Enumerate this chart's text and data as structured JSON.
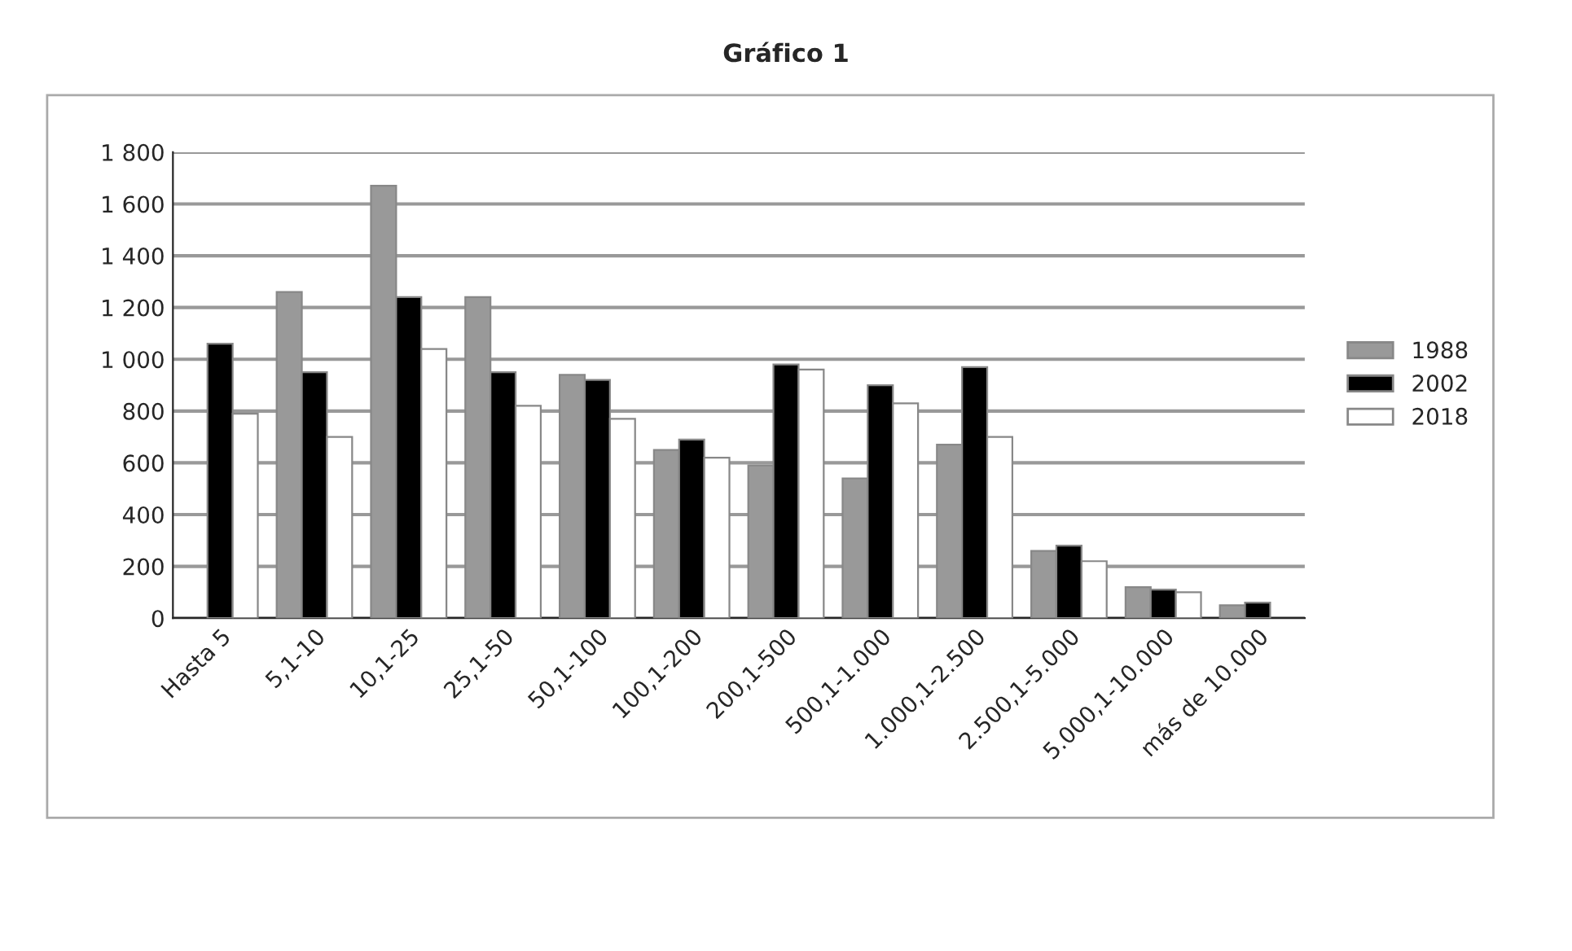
{
  "chart_data": {
    "type": "bar",
    "title": "Gráfico 1",
    "categories": [
      "Hasta 5",
      "5,1-10",
      "10,1-25",
      "25,1-50",
      "50,1-100",
      "100,1-200",
      "200,1-500",
      "500,1-1.000",
      "1.000,1-2.500",
      "2.500,1-5.000",
      "5.000,1-10.000",
      "más de 10.000"
    ],
    "series": [
      {
        "name": "1988",
        "color": "#999999",
        "values": [
          null,
          1260,
          1670,
          1240,
          940,
          650,
          590,
          540,
          670,
          260,
          120,
          50
        ]
      },
      {
        "name": "2002",
        "color": "#000000",
        "values": [
          1060,
          950,
          1240,
          950,
          920,
          690,
          980,
          900,
          970,
          280,
          110,
          60
        ]
      },
      {
        "name": "2018",
        "color": "#ffffff",
        "values": [
          790,
          700,
          1040,
          820,
          770,
          620,
          960,
          830,
          700,
          220,
          100,
          null
        ]
      }
    ],
    "ylim": [
      0,
      1800
    ],
    "yticks": [
      0,
      200,
      400,
      600,
      800,
      {
        "value": 1000,
        "label": "1 000"
      },
      {
        "value": 1200,
        "label": "1 200"
      },
      {
        "value": 1400,
        "label": "1 400"
      },
      {
        "value": 1600,
        "label": "1 600"
      },
      {
        "value": 1800,
        "label": "1 800"
      }
    ],
    "grid": "y",
    "legend": "right"
  }
}
